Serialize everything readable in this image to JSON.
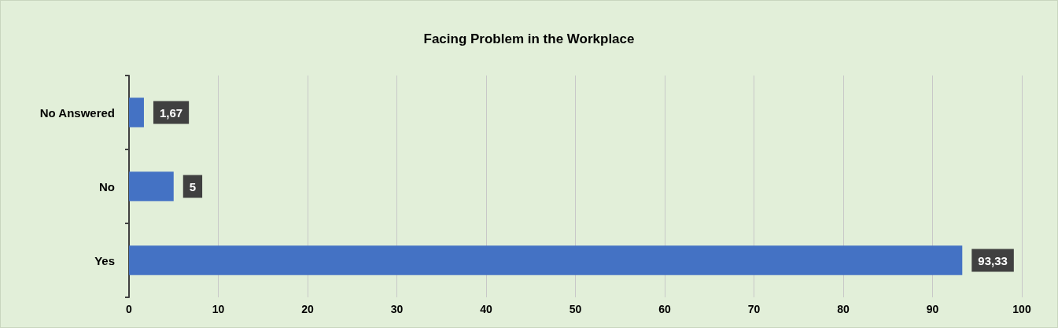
{
  "chart_data": {
    "type": "bar",
    "title": "Facing Problem in the Workplace",
    "orientation": "horizontal",
    "categories": [
      "No Answered",
      "No",
      "Yes"
    ],
    "values": [
      1.67,
      5,
      93.33
    ],
    "value_labels": [
      "1,67",
      "5",
      "93,33"
    ],
    "color": "#4472c4",
    "xlim": [
      0,
      100
    ],
    "xticks": [
      0,
      10,
      20,
      30,
      40,
      50,
      60,
      70,
      80,
      90,
      100
    ],
    "grid": "x"
  }
}
